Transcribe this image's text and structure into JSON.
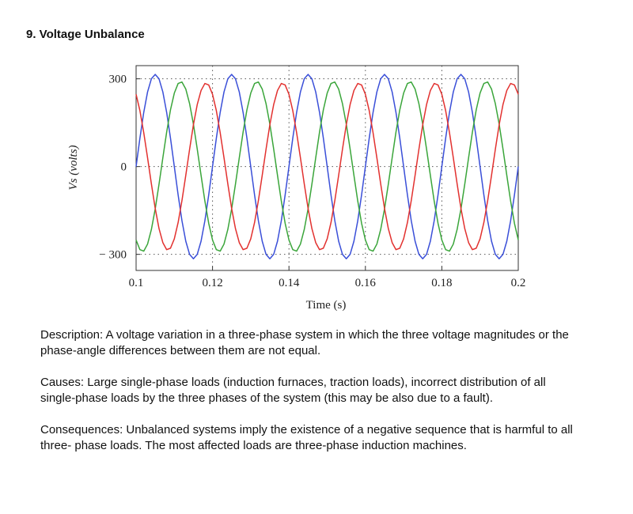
{
  "heading": "9. Voltage Unbalance",
  "chart_data": {
    "type": "line",
    "xlabel": "Time (s)",
    "ylabel": "Vs (volts)",
    "x": [
      0.1,
      0.101,
      0.102,
      0.103,
      0.104,
      0.105,
      0.106,
      0.107,
      0.108,
      0.109,
      0.11,
      0.111,
      0.112,
      0.113,
      0.114,
      0.115,
      0.116,
      0.117,
      0.118,
      0.119,
      0.12,
      0.121,
      0.122,
      0.123,
      0.124,
      0.125,
      0.126,
      0.127,
      0.128,
      0.129,
      0.13,
      0.131,
      0.132,
      0.133,
      0.134,
      0.135,
      0.136,
      0.137,
      0.138,
      0.139,
      0.14,
      0.141,
      0.142,
      0.143,
      0.144,
      0.145,
      0.146,
      0.147,
      0.148,
      0.149,
      0.15,
      0.151,
      0.152,
      0.153,
      0.154,
      0.155,
      0.156,
      0.157,
      0.158,
      0.159,
      0.16,
      0.161,
      0.162,
      0.163,
      0.164,
      0.165,
      0.166,
      0.167,
      0.168,
      0.169,
      0.17,
      0.171,
      0.172,
      0.173,
      0.174,
      0.175,
      0.176,
      0.177,
      0.178,
      0.179,
      0.18,
      0.181,
      0.182,
      0.183,
      0.184,
      0.185,
      0.186,
      0.187,
      0.188,
      0.189,
      0.19,
      0.191,
      0.192,
      0.193,
      0.194,
      0.195,
      0.196,
      0.197,
      0.198,
      0.199,
      0.2
    ],
    "series": [
      {
        "color": "#3a4fd8",
        "values": [
          0,
          97,
          185,
          255,
          300,
          315,
          300,
          255,
          185,
          97,
          0,
          -97,
          -185,
          -255,
          -300,
          -315,
          -300,
          -255,
          -185,
          -97,
          0,
          97,
          185,
          255,
          300,
          315,
          300,
          255,
          185,
          97,
          0,
          -97,
          -185,
          -255,
          -300,
          -315,
          -300,
          -255,
          -185,
          -97,
          0,
          97,
          185,
          255,
          300,
          315,
          300,
          255,
          185,
          97,
          0,
          -97,
          -185,
          -255,
          -300,
          -315,
          -300,
          -255,
          -185,
          -97,
          0,
          97,
          185,
          255,
          300,
          315,
          300,
          255,
          185,
          97,
          0,
          -97,
          -185,
          -255,
          -300,
          -315,
          -300,
          -255,
          -185,
          -97,
          0,
          97,
          185,
          255,
          300,
          315,
          300,
          255,
          185,
          97,
          0,
          -97,
          -185,
          -255,
          -300,
          -315,
          -300,
          -255,
          -185,
          -97,
          0
        ]
      },
      {
        "color": "#3aa53a",
        "values": [
          -251,
          -284,
          -289,
          -265,
          -215,
          -145,
          -60,
          30,
          118,
          194,
          251,
          284,
          289,
          265,
          215,
          145,
          60,
          -30,
          -118,
          -194,
          -251,
          -284,
          -289,
          -265,
          -215,
          -145,
          -60,
          30,
          118,
          194,
          251,
          284,
          289,
          265,
          215,
          145,
          60,
          -30,
          -118,
          -194,
          -251,
          -284,
          -289,
          -265,
          -215,
          -145,
          -60,
          30,
          118,
          194,
          251,
          284,
          289,
          265,
          215,
          145,
          60,
          -30,
          -118,
          -194,
          -251,
          -284,
          -289,
          -265,
          -215,
          -145,
          -60,
          30,
          118,
          194,
          251,
          284,
          289,
          265,
          215,
          145,
          60,
          -30,
          -118,
          -194,
          -251,
          -284,
          -289,
          -265,
          -215,
          -145,
          -60,
          30,
          118,
          194,
          251,
          284,
          289,
          265,
          215,
          145,
          60,
          -30,
          -118,
          -194,
          -251
        ]
      },
      {
        "color": "#e2312f",
        "values": [
          247,
          191,
          116,
          30,
          -59,
          -143,
          -212,
          -260,
          -284,
          -279,
          -247,
          -191,
          -116,
          -30,
          59,
          143,
          212,
          260,
          284,
          279,
          247,
          191,
          116,
          30,
          -59,
          -143,
          -212,
          -260,
          -284,
          -279,
          -247,
          -191,
          -116,
          -30,
          59,
          143,
          212,
          260,
          284,
          279,
          247,
          191,
          116,
          30,
          -59,
          -143,
          -212,
          -260,
          -284,
          -279,
          -247,
          -191,
          -116,
          -30,
          59,
          143,
          212,
          260,
          284,
          279,
          247,
          191,
          116,
          30,
          -59,
          -143,
          -212,
          -260,
          -284,
          -279,
          -247,
          -191,
          -116,
          -30,
          59,
          143,
          212,
          260,
          284,
          279,
          247,
          191,
          116,
          30,
          -59,
          -143,
          -212,
          -260,
          -284,
          -279,
          -247,
          -191,
          -116,
          -30,
          59,
          143,
          212,
          260,
          284,
          279,
          247
        ]
      }
    ],
    "xlim": [
      0.1,
      0.2
    ],
    "xticks": [
      0.1,
      0.12,
      0.14,
      0.16,
      0.18,
      0.2
    ],
    "ylim": [
      -355,
      345
    ],
    "yticks": [
      {
        "value": -300,
        "label": "− 300"
      },
      0,
      300
    ],
    "grid": true
  },
  "paragraphs": [
    "Description: A voltage variation in a three-phase system in which the three voltage magnitudes or the phase-angle differences between them are not equal.",
    "Causes: Large single-phase loads (induction furnaces, traction loads), incorrect distribution of all single-phase loads by the three phases of the system (this may be also due to a fault).",
    "Consequences: Unbalanced systems imply the existence of a negative sequence that is harmful to all three- phase loads. The most affected loads are three-phase induction machines."
  ]
}
